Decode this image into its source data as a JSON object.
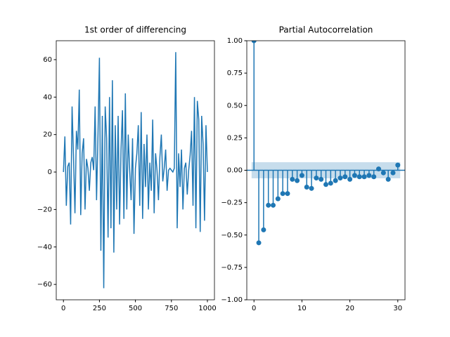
{
  "chart_data": [
    {
      "type": "line",
      "title": "1st order of differencing",
      "color": "#1f77b4",
      "x": [
        0,
        10,
        20,
        30,
        40,
        50,
        60,
        70,
        80,
        90,
        100,
        110,
        120,
        130,
        140,
        150,
        160,
        170,
        180,
        190,
        200,
        210,
        220,
        230,
        240,
        250,
        260,
        270,
        280,
        290,
        300,
        310,
        320,
        330,
        340,
        350,
        360,
        370,
        380,
        390,
        400,
        410,
        420,
        430,
        440,
        450,
        460,
        470,
        480,
        490,
        500,
        510,
        520,
        530,
        540,
        550,
        560,
        570,
        580,
        590,
        600,
        610,
        620,
        630,
        640,
        650,
        660,
        670,
        680,
        690,
        700,
        710,
        720,
        730,
        740,
        750,
        760,
        770,
        780,
        790,
        800,
        810,
        820,
        830,
        840,
        850,
        860,
        870,
        880,
        890,
        900,
        910,
        920,
        930,
        940,
        950,
        960,
        970,
        980,
        990,
        1000
      ],
      "values": [
        0,
        19,
        -18,
        3,
        5,
        -28,
        35,
        8,
        -22,
        22,
        12,
        44,
        -23,
        10,
        18,
        -20,
        7,
        2,
        -10,
        5,
        8,
        1,
        35,
        -15,
        20,
        61,
        -42,
        30,
        -62,
        35,
        18,
        -35,
        40,
        -30,
        49,
        -43,
        25,
        -20,
        30,
        -28,
        12,
        33,
        -25,
        42,
        -20,
        20,
        1,
        -15,
        18,
        -33,
        2,
        10,
        25,
        -18,
        32,
        -25,
        15,
        -8,
        20,
        -20,
        5,
        -10,
        28,
        -22,
        10,
        1,
        -15,
        8,
        20,
        -5,
        2,
        12,
        -10,
        1,
        2,
        1,
        0,
        2,
        64,
        -30,
        10,
        -8,
        12,
        -20,
        2,
        5,
        -12,
        1,
        9,
        22,
        -18,
        40,
        -30,
        38,
        28,
        -32,
        30,
        15,
        -26,
        25,
        0
      ],
      "xlim": [
        -49.95,
        1048.95
      ],
      "ylim": [
        -68.2,
        70.1
      ],
      "xticks": [
        0,
        250,
        500,
        750,
        1000
      ],
      "yticks": [
        {
          "value": -60,
          "label": "−60"
        },
        {
          "value": -40,
          "label": "−40"
        },
        {
          "value": -20,
          "label": "−20"
        },
        0,
        20,
        40,
        60
      ]
    },
    {
      "type": "stem",
      "title": "Partial Autocorrelation",
      "color": "#1f77b4",
      "x": [
        0,
        1,
        2,
        3,
        4,
        5,
        6,
        7,
        8,
        9,
        10,
        11,
        12,
        13,
        14,
        15,
        16,
        17,
        18,
        19,
        20,
        21,
        22,
        23,
        24,
        25,
        26,
        27,
        28,
        29,
        30
      ],
      "values": [
        1.0,
        -0.56,
        -0.46,
        -0.27,
        -0.27,
        -0.22,
        -0.18,
        -0.18,
        -0.07,
        -0.08,
        -0.04,
        -0.13,
        -0.14,
        -0.06,
        -0.07,
        -0.11,
        -0.1,
        -0.08,
        -0.06,
        -0.05,
        -0.07,
        -0.04,
        -0.05,
        -0.05,
        -0.04,
        -0.05,
        0.01,
        -0.02,
        -0.07,
        -0.02,
        0.04
      ],
      "conf_band": 0.062,
      "xlim": [
        -1.5,
        31.5
      ],
      "ylim": [
        -1,
        1
      ],
      "xticks": [
        0,
        10,
        20,
        30
      ],
      "yticks": [
        {
          "value": -1,
          "label": "−1.00"
        },
        {
          "value": -0.75,
          "label": "−0.75"
        },
        {
          "value": -0.5,
          "label": "−0.50"
        },
        {
          "value": -0.25,
          "label": "−0.25"
        },
        {
          "value": 0,
          "label": "0.00"
        },
        {
          "value": 0.25,
          "label": "0.25"
        },
        {
          "value": 0.5,
          "label": "0.50"
        },
        {
          "value": 0.75,
          "label": "0.75"
        },
        {
          "value": 1,
          "label": "1.00"
        }
      ]
    }
  ]
}
